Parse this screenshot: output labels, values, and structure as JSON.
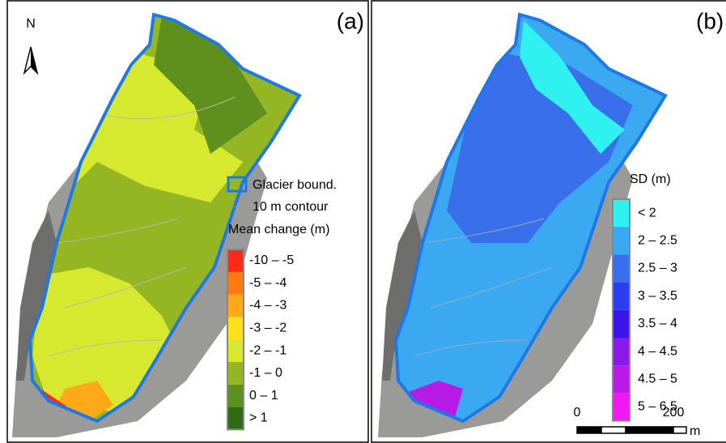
{
  "panels": [
    {
      "label": "(a)",
      "north": "N",
      "boundary_label": "Glacier bound.",
      "contour_label": "10 m contour",
      "legend": {
        "title": "Mean change (m)",
        "items": [
          {
            "label": "-10 – -5",
            "color": "#ff2a1a"
          },
          {
            "label": "-5 – -4",
            "color": "#ff7a10"
          },
          {
            "label": "-4 – -3",
            "color": "#ffa81a"
          },
          {
            "label": "-3 – -2",
            "color": "#ffe11a"
          },
          {
            "label": "-2 – -1",
            "color": "#d7e92e"
          },
          {
            "label": "-1 – 0",
            "color": "#94b623"
          },
          {
            "label": "0 – 1",
            "color": "#5f8f1c"
          },
          {
            "label": "> 1",
            "color": "#2f6a14"
          }
        ]
      }
    },
    {
      "label": "(b)",
      "legend": {
        "title": "SD (m)",
        "items": [
          {
            "label": "< 2",
            "color": "#2ff2f0"
          },
          {
            "label": "2 – 2.5",
            "color": "#3aa9f2"
          },
          {
            "label": "2.5 – 3",
            "color": "#3a6fec"
          },
          {
            "label": "3 – 3.5",
            "color": "#2a3ef0"
          },
          {
            "label": "3.5 – 4",
            "color": "#3a14e8"
          },
          {
            "label": "4 – 4.5",
            "color": "#8a1ae8"
          },
          {
            "label": "4.5 – 5",
            "color": "#b81ae8"
          },
          {
            "label": "5 – 6.5",
            "color": "#f01af0"
          }
        ]
      },
      "scale": {
        "start": "0",
        "end": "200",
        "unit": "m"
      }
    }
  ]
}
